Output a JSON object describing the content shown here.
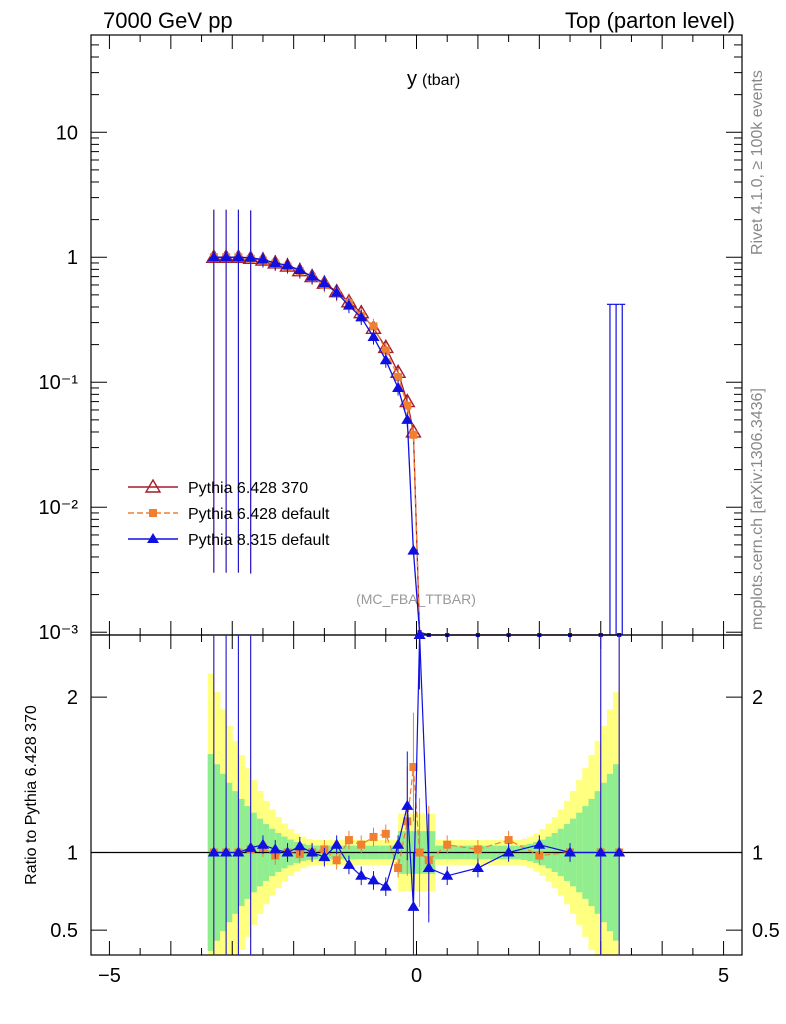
{
  "header": {
    "left": "7000 GeV pp",
    "right": "Top (parton level)"
  },
  "side": {
    "rivet": "Rivet 4.1.0, ≥ 100k events",
    "mcplots": "mcplots.cern.ch [arXiv:1306.3436]"
  },
  "chart_data": [
    {
      "type": "line",
      "title_main": "y",
      "title_sub": "(tbar)",
      "watermark": "(MC_FBA_TTBAR)",
      "yscale": "log",
      "xlim": [
        -5.3,
        5.3
      ],
      "ylim": [
        0.00095,
        60
      ],
      "ytick_labels": [
        {
          "v": 0.001,
          "label": "10⁻³"
        },
        {
          "v": 0.01,
          "label": "10⁻²"
        },
        {
          "v": 0.1,
          "label": "10⁻¹"
        },
        {
          "v": 1,
          "label": "1"
        },
        {
          "v": 10,
          "label": "10"
        }
      ],
      "legend": [
        {
          "name": "Pythia 6.428 370",
          "color": "#a41d2a",
          "marker": "open-triangle",
          "dash": ""
        },
        {
          "name": "Pythia 6.428 default",
          "color": "#f08030",
          "marker": "square",
          "dash": "6,3"
        },
        {
          "name": "Pythia 8.315 default",
          "color": "#1010e0",
          "marker": "filled-triangle",
          "dash": ""
        }
      ],
      "x": [
        -3.3,
        -3.1,
        -2.9,
        -2.7,
        -2.5,
        -2.3,
        -2.1,
        -1.9,
        -1.7,
        -1.5,
        -1.3,
        -1.1,
        -0.9,
        -0.7,
        -0.5,
        -0.3,
        -0.15,
        -0.05,
        0.05,
        0.2,
        0.5,
        1.0,
        1.5,
        2.0,
        2.5,
        3.0,
        3.3
      ],
      "series": [
        {
          "name": "Pythia 6.428 370",
          "values": [
            1.0,
            1.0,
            1.0,
            0.98,
            0.95,
            0.9,
            0.85,
            0.78,
            0.7,
            0.62,
            0.53,
            0.44,
            0.36,
            0.27,
            0.19,
            0.12,
            0.07,
            0.04,
            0.001,
            0.00092,
            0.00092,
            0.00092,
            0.00092,
            0.00092,
            0.00092,
            0.00092,
            0.00092
          ]
        },
        {
          "name": "Pythia 6.428 default",
          "values": [
            1.0,
            1.0,
            1.0,
            0.97,
            0.94,
            0.89,
            0.84,
            0.77,
            0.69,
            0.6,
            0.51,
            0.43,
            0.34,
            0.28,
            0.18,
            0.11,
            0.065,
            0.038,
            0.001,
            0.00092,
            0.00092,
            0.00092,
            0.00092,
            0.00092,
            0.00092,
            0.00092,
            0.00092
          ]
        },
        {
          "name": "Pythia 8.315 default",
          "values": [
            1.0,
            1.0,
            1.0,
            0.99,
            0.96,
            0.9,
            0.86,
            0.79,
            0.7,
            0.62,
            0.52,
            0.41,
            0.33,
            0.23,
            0.15,
            0.09,
            0.05,
            0.0045,
            0.001,
            0.00092,
            0.00092,
            0.00092,
            0.00092,
            0.00092,
            0.00092,
            0.00092,
            0.00092
          ]
        }
      ]
    },
    {
      "type": "line",
      "ylabel": "Ratio to Pythia 6.428 370",
      "xlim": [
        -5.3,
        5.3
      ],
      "ylim": [
        0.34,
        2.4
      ],
      "xtick_labels": [
        {
          "v": -5,
          "label": "−5"
        },
        {
          "v": 0,
          "label": "0"
        },
        {
          "v": 5,
          "label": "5"
        }
      ],
      "ytick_labels": [
        {
          "v": 0.5,
          "label": "0.5"
        },
        {
          "v": 1,
          "label": "1"
        },
        {
          "v": 2,
          "label": "2"
        }
      ],
      "x": [
        -3.3,
        -3.1,
        -2.9,
        -2.7,
        -2.5,
        -2.3,
        -2.1,
        -1.9,
        -1.7,
        -1.5,
        -1.3,
        -1.1,
        -0.9,
        -0.7,
        -0.5,
        -0.3,
        -0.15,
        -0.05,
        0.05,
        0.2,
        0.5,
        1.0,
        1.5,
        2.0,
        2.5,
        3.0,
        3.3
      ],
      "series": [
        {
          "name": "Pythia 6.428 default",
          "values": [
            1.0,
            1.0,
            1.0,
            1.02,
            1.03,
            0.98,
            1.0,
            0.99,
            1.0,
            1.02,
            0.95,
            1.08,
            1.05,
            1.1,
            1.12,
            0.9,
            1.2,
            1.55,
            1.0,
            0.95,
            1.05,
            1.02,
            1.08,
            0.98,
            1.0,
            1.0,
            1.0
          ]
        },
        {
          "name": "Pythia 8.315 default",
          "values": [
            1.0,
            1.0,
            1.0,
            1.03,
            1.05,
            1.02,
            1.0,
            1.04,
            1.0,
            0.97,
            1.05,
            0.92,
            0.85,
            0.82,
            0.78,
            1.05,
            1.3,
            0.65,
            2.4,
            0.9,
            0.85,
            0.9,
            1.0,
            1.05,
            1.0,
            1.0,
            1.0
          ]
        }
      ]
    }
  ]
}
